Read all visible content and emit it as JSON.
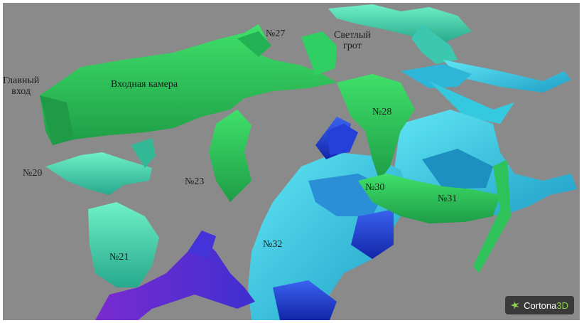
{
  "viewer": {
    "brand_left": "Cortona",
    "brand_right": "3D",
    "colors": {
      "background": "#8a8a8a",
      "green": "#2fc25a",
      "teal": "#3fd6b4",
      "cyan": "#35c9e0",
      "blue": "#1a3fd0",
      "violet": "#5a2bc9"
    }
  },
  "labels": {
    "main_entrance_line1": "Главный",
    "main_entrance_line2": "вход",
    "entrance_chamber": "Входная камера",
    "bright_grotto_line1": "Светлый",
    "bright_grotto_line2": "грот",
    "n27": "№27",
    "n28": "№28",
    "n20": "№20",
    "n23": "№23",
    "n30": "№30",
    "n31": "№31",
    "n32": "№32",
    "n21": "№21"
  }
}
